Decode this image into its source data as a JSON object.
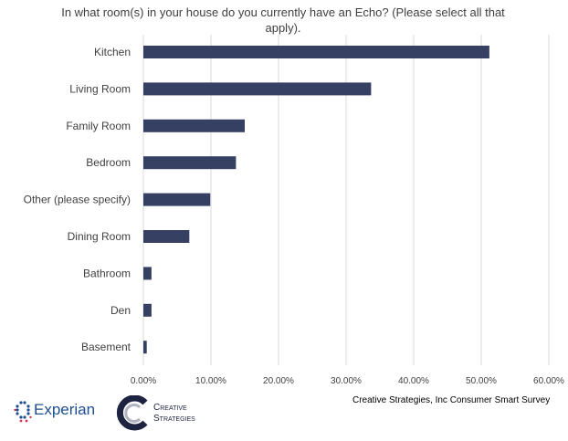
{
  "chart_data": {
    "type": "bar",
    "orientation": "horizontal",
    "title": "In what room(s) in your house do you currently have an Echo? (Please select all that apply).",
    "categories": [
      "Kitchen",
      "Living Room",
      "Family Room",
      "Bedroom",
      "Other (please specify)",
      "Dining Room",
      "Bathroom",
      "Den",
      "Basement"
    ],
    "values": [
      51.2,
      33.7,
      15.0,
      13.7,
      9.9,
      6.8,
      1.2,
      1.2,
      0.5
    ],
    "xlim": [
      0,
      60
    ],
    "xticks": [
      "0.00%",
      "10.00%",
      "20.00%",
      "30.00%",
      "40.00%",
      "50.00%",
      "60.00%"
    ],
    "xlabel": "",
    "ylabel": "",
    "grid": true,
    "bar_color": "#364063"
  },
  "footer": {
    "source": "Creative Strategies, Inc Consumer Smart Survey",
    "logo_experian": "Experian",
    "logo_creative_strategies": "Creative Strategies"
  }
}
